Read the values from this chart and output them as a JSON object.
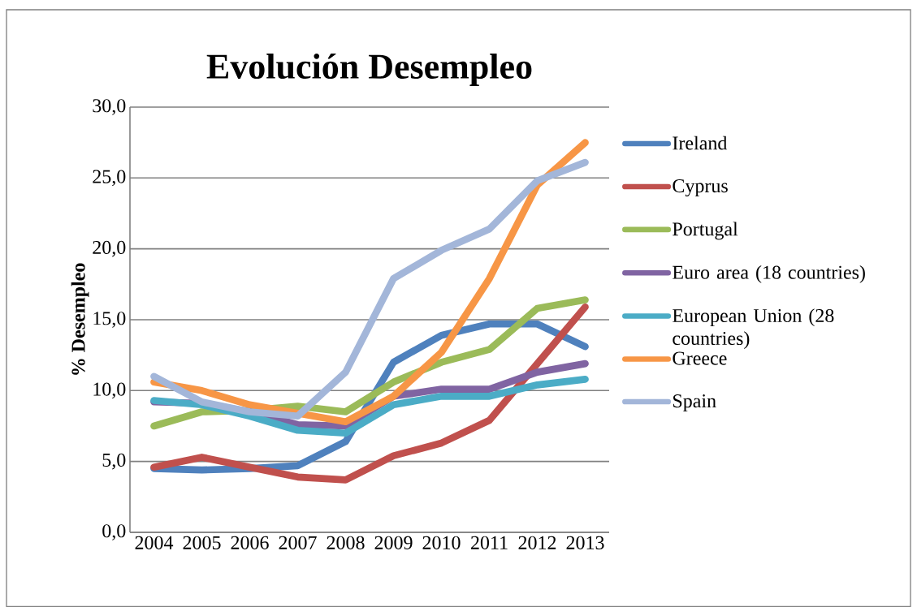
{
  "chart_data": {
    "type": "line",
    "title": "Evolución Desempleo",
    "ylabel": "% Desempleo",
    "categories": [
      "2004",
      "2005",
      "2006",
      "2007",
      "2008",
      "2009",
      "2010",
      "2011",
      "2012",
      "2013"
    ],
    "series": [
      {
        "name": "Ireland",
        "color": "#4f81bd",
        "values": [
          4.5,
          4.4,
          4.5,
          4.7,
          6.4,
          12.0,
          13.9,
          14.7,
          14.7,
          13.1
        ]
      },
      {
        "name": "Cyprus",
        "color": "#c0504d",
        "values": [
          4.6,
          5.3,
          4.6,
          3.9,
          3.7,
          5.4,
          6.3,
          7.9,
          11.9,
          15.9
        ]
      },
      {
        "name": "Portugal",
        "color": "#9bbb59",
        "values": [
          7.5,
          8.5,
          8.6,
          8.9,
          8.5,
          10.6,
          12.0,
          12.9,
          15.8,
          16.4
        ]
      },
      {
        "name": "Euro area (18 countries)",
        "color": "#8064a2",
        "values": [
          9.2,
          9.1,
          8.5,
          7.6,
          7.5,
          9.6,
          10.1,
          10.1,
          11.3,
          11.9
        ]
      },
      {
        "name": "European Union (28 countries)",
        "color": "#4bacc6",
        "values": [
          9.3,
          9.0,
          8.2,
          7.2,
          7.0,
          9.0,
          9.6,
          9.6,
          10.4,
          10.8
        ]
      },
      {
        "name": "Greece",
        "color": "#f79646",
        "values": [
          10.6,
          10.0,
          9.0,
          8.4,
          7.8,
          9.6,
          12.7,
          17.9,
          24.5,
          27.5
        ]
      },
      {
        "name": "Spain",
        "color": "#a3b6d9",
        "values": [
          11.0,
          9.2,
          8.5,
          8.2,
          11.3,
          17.9,
          19.9,
          21.4,
          24.8,
          26.1
        ]
      }
    ],
    "ylim": [
      0,
      30
    ],
    "yticks": [
      {
        "value": 0,
        "label": "0,0"
      },
      {
        "value": 5,
        "label": "5,0"
      },
      {
        "value": 10,
        "label": "10,0"
      },
      {
        "value": 15,
        "label": "15,0"
      },
      {
        "value": 20,
        "label": "20,0"
      },
      {
        "value": 25,
        "label": "25,0"
      },
      {
        "value": 30,
        "label": "30,0"
      }
    ],
    "grid": "y",
    "legend": "right",
    "marker": "none",
    "line_style": "solid"
  }
}
